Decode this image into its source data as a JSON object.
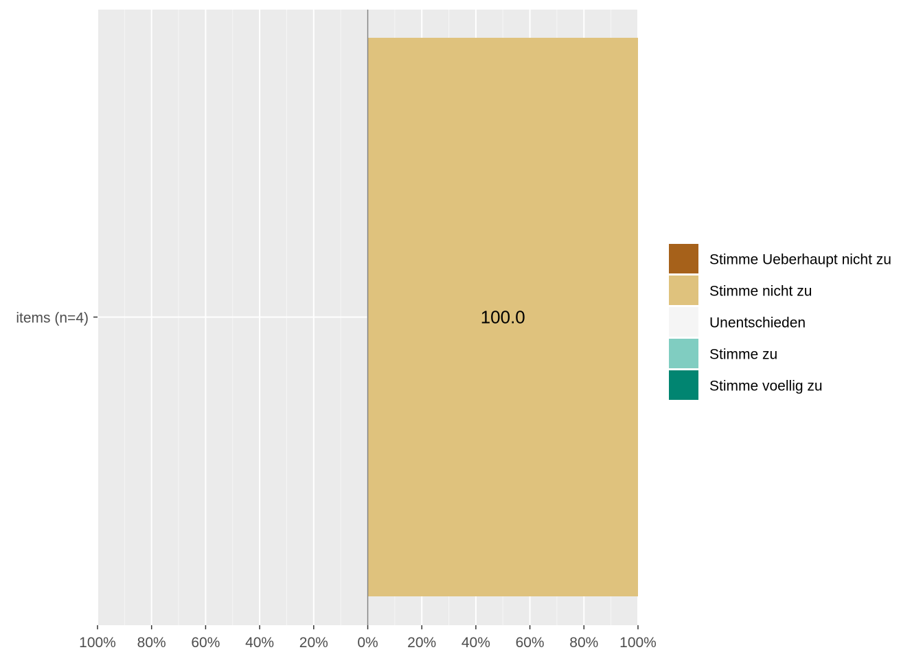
{
  "chart_data": {
    "type": "bar",
    "orientation": "horizontal",
    "stacked": "diverging",
    "categories": [
      "items (n=4)"
    ],
    "series": [
      {
        "name": "Stimme Ueberhaupt nicht zu",
        "values": [
          0
        ],
        "color": "#A6611A",
        "side": "negative"
      },
      {
        "name": "Stimme nicht zu",
        "values": [
          100.0
        ],
        "color": "#DFC27D",
        "side": "positive"
      },
      {
        "name": "Unentschieden",
        "values": [
          0
        ],
        "color": "#F5F5F5",
        "side": "neutral"
      },
      {
        "name": "Stimme zu",
        "values": [
          0
        ],
        "color": "#80CDC1",
        "side": "positive"
      },
      {
        "name": "Stimme voellig zu",
        "values": [
          0
        ],
        "color": "#018571",
        "side": "positive"
      }
    ],
    "data_labels": [
      "100.0"
    ],
    "xlim": [
      -100,
      100
    ],
    "x_ticks": [
      -100,
      -80,
      -60,
      -40,
      -20,
      0,
      20,
      40,
      60,
      80,
      100
    ],
    "x_tick_labels": [
      "100%",
      "80%",
      "60%",
      "40%",
      "20%",
      "0%",
      "20%",
      "40%",
      "60%",
      "80%",
      "100%"
    ],
    "xlabel": "",
    "ylabel": "",
    "title": "",
    "grid": true,
    "legend_position": "right"
  },
  "colors": {
    "panel_background": "#EBEBEB",
    "grid_major": "#FFFFFF",
    "zero_line": "#808080",
    "tick_text": "#4D4D4D"
  }
}
